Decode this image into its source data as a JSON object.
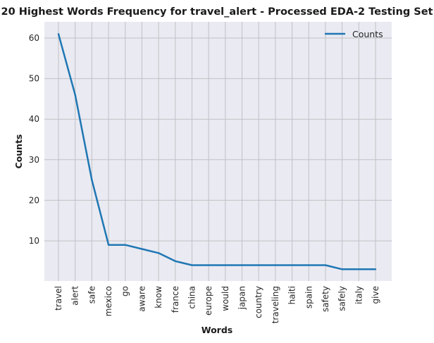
{
  "chart_data": {
    "type": "line",
    "title": "20 Highest Words Frequency for travel_alert - Processed EDA-2 Testing Set",
    "xlabel": "Words",
    "ylabel": "Counts",
    "categories": [
      "travel",
      "alert",
      "safe",
      "mexico",
      "go",
      "aware",
      "know",
      "france",
      "china",
      "europe",
      "would",
      "japan",
      "country",
      "traveling",
      "haiti",
      "spain",
      "safety",
      "safely",
      "italy",
      "give"
    ],
    "series": [
      {
        "name": "Counts",
        "values": [
          61,
          46,
          25,
          9,
          9,
          8,
          7,
          5,
          4,
          4,
          4,
          4,
          4,
          4,
          4,
          4,
          4,
          3,
          3,
          3
        ]
      }
    ],
    "ylim": [
      0.1,
      64.0
    ],
    "yticks": [
      10,
      20,
      30,
      40,
      50,
      60
    ],
    "grid": true,
    "legend": "top-right",
    "colors": {
      "line": "#1f77b4",
      "background": "#eaeaf2",
      "grid": "#c0c0c4"
    }
  }
}
